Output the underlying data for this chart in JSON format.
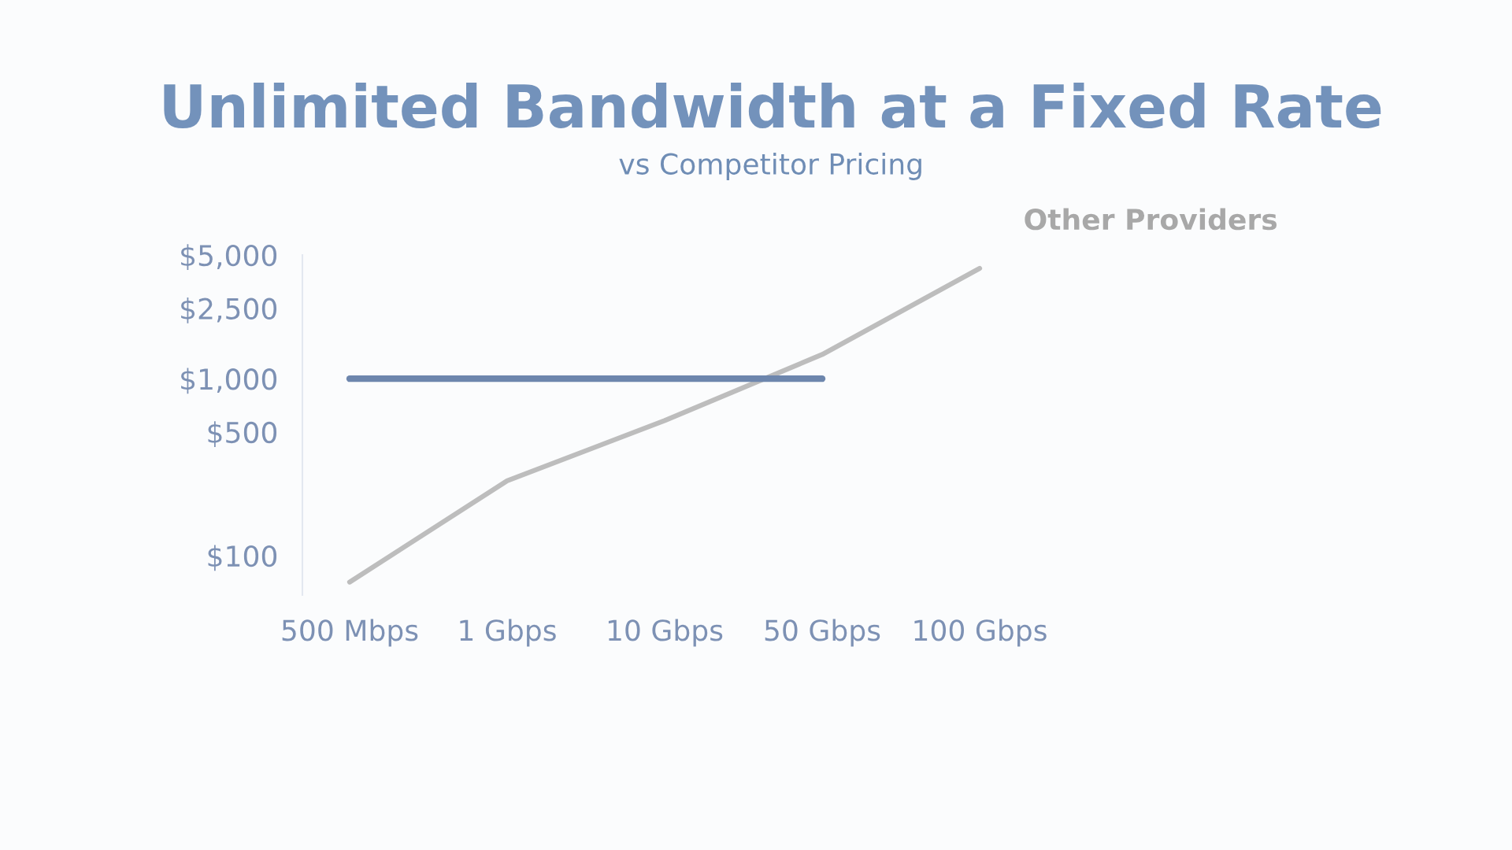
{
  "chart_data": {
    "type": "line",
    "title": "Unlimited Bandwidth at a Fixed Rate",
    "subtitle": "vs Competitor Pricing",
    "categories": [
      "500 Mbps",
      "1 Gbps",
      "10 Gbps",
      "50 Gbps",
      "100 Gbps"
    ],
    "series": [
      {
        "name": "Other Providers",
        "color": "#bdbdbd",
        "values": [
          71,
          265,
          580,
          1370,
          4200
        ]
      },
      {
        "color": "#6d86ad",
        "values": [
          1000,
          1000,
          1000,
          1000,
          null
        ]
      }
    ],
    "ylim": [
      60,
      5000
    ],
    "log": true,
    "yticks": [
      {
        "value": 100,
        "label": "$100"
      },
      {
        "value": 500,
        "label": "$500"
      },
      {
        "value": 1000,
        "label": "$1,000"
      },
      {
        "value": 2500,
        "label": "$2,500"
      },
      {
        "value": 5000,
        "label": "$5,000"
      }
    ],
    "grid": false,
    "legend": false,
    "marker": "none",
    "line_style": "solid"
  }
}
